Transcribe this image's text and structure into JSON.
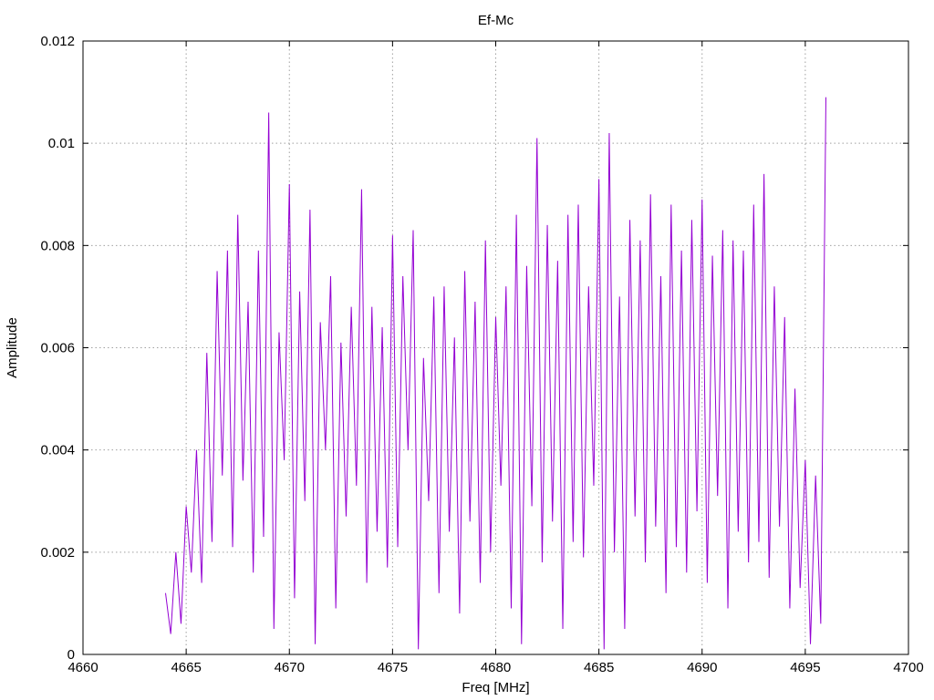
{
  "chart_data": {
    "type": "line",
    "title": "Ef-Mc",
    "xlabel": "Freq [MHz]",
    "ylabel": "Amplitude",
    "xlim": [
      4660,
      4700
    ],
    "ylim": [
      0,
      0.012
    ],
    "x_ticks": [
      4660,
      4665,
      4670,
      4675,
      4680,
      4685,
      4690,
      4695,
      4700
    ],
    "x_tick_labels": [
      "4660",
      "4665",
      "4670",
      "4675",
      "4680",
      "4685",
      "4690",
      "4695",
      "4700"
    ],
    "y_ticks": [
      0,
      0.002,
      0.004,
      0.006,
      0.008,
      0.01,
      0.012
    ],
    "y_tick_labels": [
      "0",
      "0.002",
      "0.004",
      "0.006",
      "0.008",
      "0.01",
      "0.012"
    ],
    "grid": true,
    "line_color": "#9400d3",
    "series": [
      {
        "x": [
          4664.0,
          4664.25,
          4664.5,
          4664.75,
          4665.0,
          4665.25,
          4665.5,
          4665.75,
          4666.0,
          4666.25,
          4666.5,
          4666.75,
          4667.0,
          4667.25,
          4667.5,
          4667.75,
          4668.0,
          4668.25,
          4668.5,
          4668.75,
          4669.0,
          4669.25,
          4669.5,
          4669.75,
          4670.0,
          4670.25,
          4670.5,
          4670.75,
          4671.0,
          4671.25,
          4671.5,
          4671.75,
          4672.0,
          4672.25,
          4672.5,
          4672.75,
          4673.0,
          4673.25,
          4673.5,
          4673.75,
          4674.0,
          4674.25,
          4674.5,
          4674.75,
          4675.0,
          4675.25,
          4675.5,
          4675.75,
          4676.0,
          4676.25,
          4676.5,
          4676.75,
          4677.0,
          4677.25,
          4677.5,
          4677.75,
          4678.0,
          4678.25,
          4678.5,
          4678.75,
          4679.0,
          4679.25,
          4679.5,
          4679.75,
          4680.0,
          4680.25,
          4680.5,
          4680.75,
          4681.0,
          4681.25,
          4681.5,
          4681.75,
          4682.0,
          4682.25,
          4682.5,
          4682.75,
          4683.0,
          4683.25,
          4683.5,
          4683.75,
          4684.0,
          4684.25,
          4684.5,
          4684.75,
          4685.0,
          4685.25,
          4685.5,
          4685.75,
          4686.0,
          4686.25,
          4686.5,
          4686.75,
          4687.0,
          4687.25,
          4687.5,
          4687.75,
          4688.0,
          4688.25,
          4688.5,
          4688.75,
          4689.0,
          4689.25,
          4689.5,
          4689.75,
          4690.0,
          4690.25,
          4690.5,
          4690.75,
          4691.0,
          4691.25,
          4691.5,
          4691.75,
          4692.0,
          4692.25,
          4692.5,
          4692.75,
          4693.0,
          4693.25,
          4693.5,
          4693.75,
          4694.0,
          4694.25,
          4694.5,
          4694.75,
          4695.0,
          4695.25,
          4695.5,
          4695.75,
          4696.0
        ],
        "y": [
          0.0012,
          0.0004,
          0.002,
          0.0006,
          0.0029,
          0.0016,
          0.004,
          0.0014,
          0.0059,
          0.0022,
          0.0075,
          0.0035,
          0.0079,
          0.0021,
          0.0086,
          0.0034,
          0.0069,
          0.0016,
          0.0079,
          0.0023,
          0.0106,
          0.0005,
          0.0063,
          0.0038,
          0.0092,
          0.0011,
          0.0071,
          0.003,
          0.0087,
          0.0002,
          0.0065,
          0.004,
          0.0074,
          0.0009,
          0.0061,
          0.0027,
          0.0068,
          0.0033,
          0.0091,
          0.0014,
          0.0068,
          0.0024,
          0.0064,
          0.0017,
          0.0082,
          0.0021,
          0.0074,
          0.004,
          0.0083,
          0.0001,
          0.0058,
          0.003,
          0.007,
          0.0012,
          0.0072,
          0.0024,
          0.0062,
          0.0008,
          0.0075,
          0.0026,
          0.0069,
          0.0014,
          0.0081,
          0.002,
          0.0066,
          0.0033,
          0.0072,
          0.0009,
          0.0086,
          0.0002,
          0.0076,
          0.0029,
          0.0101,
          0.0018,
          0.0084,
          0.0026,
          0.0077,
          0.0005,
          0.0086,
          0.0022,
          0.0088,
          0.0019,
          0.0072,
          0.0033,
          0.0093,
          0.0001,
          0.0102,
          0.002,
          0.007,
          0.0005,
          0.0085,
          0.0027,
          0.0081,
          0.0018,
          0.009,
          0.0025,
          0.0074,
          0.0012,
          0.0088,
          0.0021,
          0.0079,
          0.0016,
          0.0085,
          0.0028,
          0.0089,
          0.0014,
          0.0078,
          0.0031,
          0.0083,
          0.0009,
          0.0081,
          0.0024,
          0.0079,
          0.0018,
          0.0088,
          0.0022,
          0.0094,
          0.0015,
          0.0072,
          0.0025,
          0.0066,
          0.0009,
          0.0052,
          0.0013,
          0.0038,
          0.0002,
          0.0035,
          0.0006,
          0.0109
        ]
      }
    ]
  }
}
